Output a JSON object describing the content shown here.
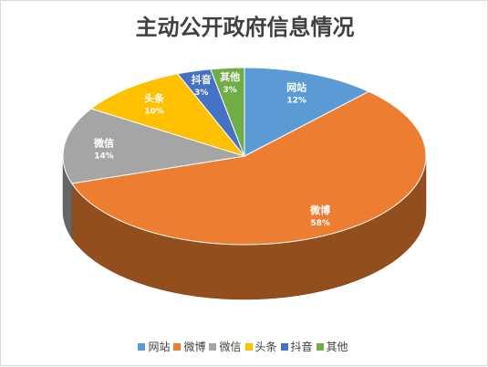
{
  "chart_data": {
    "type": "pie",
    "title": "主动公开政府信息情况",
    "categories": [
      "网站",
      "微博",
      "微信",
      "头条",
      "抖音",
      "其他"
    ],
    "values": [
      12,
      58,
      14,
      10,
      3,
      3
    ],
    "percent_labels": [
      "12%",
      "58%",
      "14%",
      "10%",
      "3%",
      "3%"
    ],
    "colors": [
      "#5b9bd5",
      "#ed7d31",
      "#a5a5a5",
      "#ffc000",
      "#4472c4",
      "#70ad47"
    ],
    "style": "3d",
    "legend": "bottom"
  }
}
